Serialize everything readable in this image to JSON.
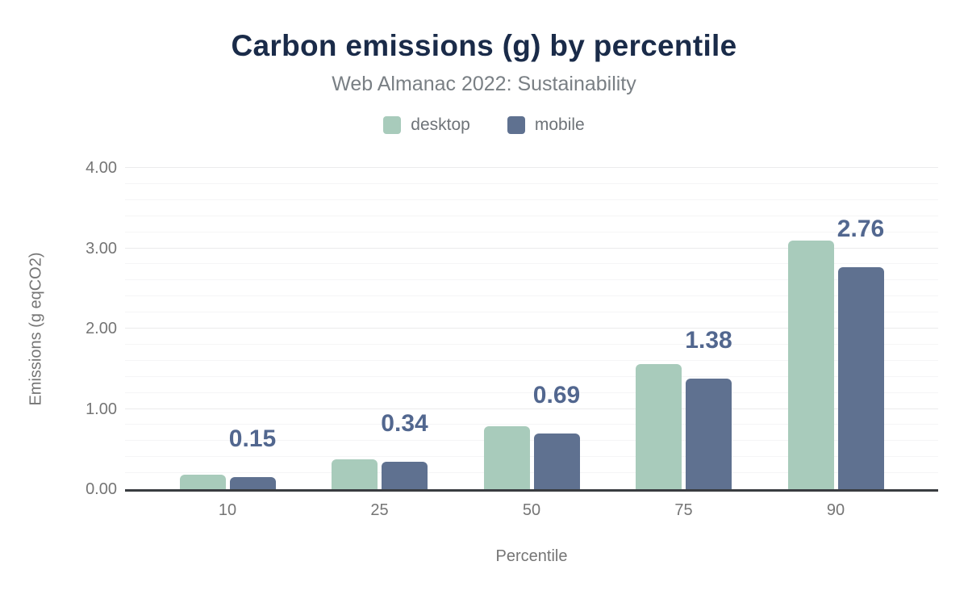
{
  "chart_data": {
    "type": "bar",
    "title": "Carbon emissions (g) by percentile",
    "subtitle": "Web Almanac 2022: Sustainability",
    "xlabel": "Percentile",
    "ylabel": "Emissions (g eqCO2)",
    "categories": [
      "10",
      "25",
      "50",
      "75",
      "90"
    ],
    "series": [
      {
        "name": "desktop",
        "color": "#a8cbbb",
        "values": [
          0.18,
          0.37,
          0.78,
          1.56,
          3.1
        ]
      },
      {
        "name": "mobile",
        "color": "#5f7190",
        "values": [
          0.15,
          0.34,
          0.69,
          1.38,
          2.76
        ]
      }
    ],
    "bar_labels": {
      "series": "mobile",
      "values": [
        "0.15",
        "0.34",
        "0.69",
        "1.38",
        "2.76"
      ],
      "color": "#52678f"
    },
    "ylim": [
      0,
      4
    ],
    "ytick_values": [
      0,
      1,
      2,
      3,
      4
    ],
    "yticks": [
      "0.00",
      "1.00",
      "2.00",
      "3.00",
      "4.00"
    ],
    "yminor_step": 0.2,
    "grid": true,
    "legend_position": "top"
  },
  "style": {
    "title_color": "#1a2b49",
    "axis_text_color": "#757575",
    "legend_text_color": "#6e7378",
    "axis_line_color": "#393c40",
    "major_grid_color": "#ebebec",
    "minor_grid_color": "#f5f5f6",
    "background": "#ffffff"
  }
}
